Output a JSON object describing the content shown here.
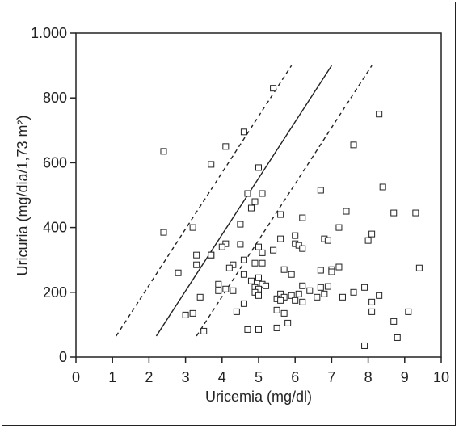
{
  "chart_data": {
    "type": "scatter",
    "xlabel": "Uricemia (mg/dl)",
    "ylabel": "Uricuria (mg/dia/1,73 m²)",
    "xlim": [
      0,
      10
    ],
    "ylim": [
      0,
      1000
    ],
    "x_ticks": [
      0,
      1,
      2,
      3,
      4,
      5,
      6,
      7,
      8,
      9,
      10
    ],
    "y_ticks": [
      0,
      200,
      400,
      600,
      800,
      1000
    ],
    "x_tick_labels": [
      "0",
      "1",
      "2",
      "3",
      "4",
      "5",
      "6",
      "7",
      "8",
      "9",
      "10"
    ],
    "y_tick_labels": [
      "0",
      "200",
      "400",
      "600",
      "800",
      "1.000"
    ],
    "grid": false,
    "marker": "open-square",
    "lines": [
      {
        "style": "solid",
        "x": [
          2.2,
          7.0
        ],
        "y": [
          65,
          900
        ]
      },
      {
        "style": "dashed",
        "x": [
          1.1,
          5.9
        ],
        "y": [
          65,
          900
        ]
      },
      {
        "style": "dashed",
        "x": [
          3.3,
          8.1
        ],
        "y": [
          65,
          900
        ]
      }
    ],
    "points": [
      [
        5.4,
        830
      ],
      [
        8.3,
        750
      ],
      [
        4.6,
        695
      ],
      [
        7.6,
        655
      ],
      [
        2.4,
        635
      ],
      [
        4.1,
        650
      ],
      [
        3.7,
        595
      ],
      [
        5.0,
        585
      ],
      [
        8.4,
        525
      ],
      [
        6.7,
        515
      ],
      [
        4.7,
        505
      ],
      [
        5.1,
        505
      ],
      [
        4.9,
        480
      ],
      [
        4.8,
        460
      ],
      [
        7.4,
        450
      ],
      [
        8.7,
        445
      ],
      [
        9.3,
        445
      ],
      [
        5.6,
        440
      ],
      [
        6.2,
        430
      ],
      [
        4.5,
        410
      ],
      [
        7.2,
        400
      ],
      [
        3.2,
        400
      ],
      [
        2.4,
        385
      ],
      [
        8.1,
        380
      ],
      [
        6.0,
        375
      ],
      [
        5.6,
        365
      ],
      [
        6.8,
        365
      ],
      [
        6.9,
        360
      ],
      [
        8.0,
        360
      ],
      [
        4.1,
        350
      ],
      [
        4.5,
        348
      ],
      [
        6.0,
        350
      ],
      [
        6.1,
        345
      ],
      [
        4.0,
        340
      ],
      [
        5.0,
        340
      ],
      [
        6.2,
        335
      ],
      [
        5.4,
        330
      ],
      [
        5.1,
        322
      ],
      [
        3.3,
        315
      ],
      [
        3.7,
        315
      ],
      [
        3.7,
        315
      ],
      [
        4.6,
        300
      ],
      [
        5.1,
        290
      ],
      [
        3.3,
        285
      ],
      [
        4.3,
        285
      ],
      [
        4.9,
        290
      ],
      [
        9.4,
        275
      ],
      [
        4.2,
        275
      ],
      [
        5.7,
        270
      ],
      [
        6.7,
        268
      ],
      [
        7.0,
        270
      ],
      [
        7.0,
        263
      ],
      [
        7.2,
        278
      ],
      [
        2.8,
        260
      ],
      [
        4.6,
        255
      ],
      [
        5.9,
        255
      ],
      [
        5.0,
        245
      ],
      [
        4.8,
        235
      ],
      [
        3.9,
        225
      ],
      [
        5.1,
        225
      ],
      [
        5.2,
        220
      ],
      [
        4.9,
        215
      ],
      [
        5.0,
        210
      ],
      [
        6.2,
        220
      ],
      [
        6.7,
        215
      ],
      [
        6.9,
        218
      ],
      [
        7.9,
        215
      ],
      [
        3.9,
        205
      ],
      [
        4.1,
        210
      ],
      [
        4.3,
        205
      ],
      [
        4.9,
        200
      ],
      [
        5.6,
        195
      ],
      [
        6.1,
        195
      ],
      [
        6.4,
        205
      ],
      [
        6.8,
        195
      ],
      [
        7.6,
        200
      ],
      [
        8.3,
        190
      ],
      [
        3.4,
        185
      ],
      [
        5.0,
        190
      ],
      [
        5.7,
        185
      ],
      [
        5.9,
        190
      ],
      [
        6.6,
        185
      ],
      [
        7.3,
        185
      ],
      [
        5.5,
        180
      ],
      [
        5.6,
        175
      ],
      [
        6.0,
        175
      ],
      [
        6.2,
        170
      ],
      [
        8.1,
        170
      ],
      [
        4.6,
        165
      ],
      [
        8.1,
        140
      ],
      [
        5.5,
        145
      ],
      [
        5.7,
        135
      ],
      [
        4.4,
        140
      ],
      [
        9.1,
        140
      ],
      [
        3.0,
        130
      ],
      [
        3.2,
        135
      ],
      [
        5.8,
        105
      ],
      [
        8.7,
        110
      ],
      [
        4.7,
        85
      ],
      [
        5.0,
        85
      ],
      [
        5.5,
        90
      ],
      [
        3.5,
        80
      ],
      [
        8.8,
        60
      ],
      [
        7.9,
        35
      ]
    ]
  }
}
